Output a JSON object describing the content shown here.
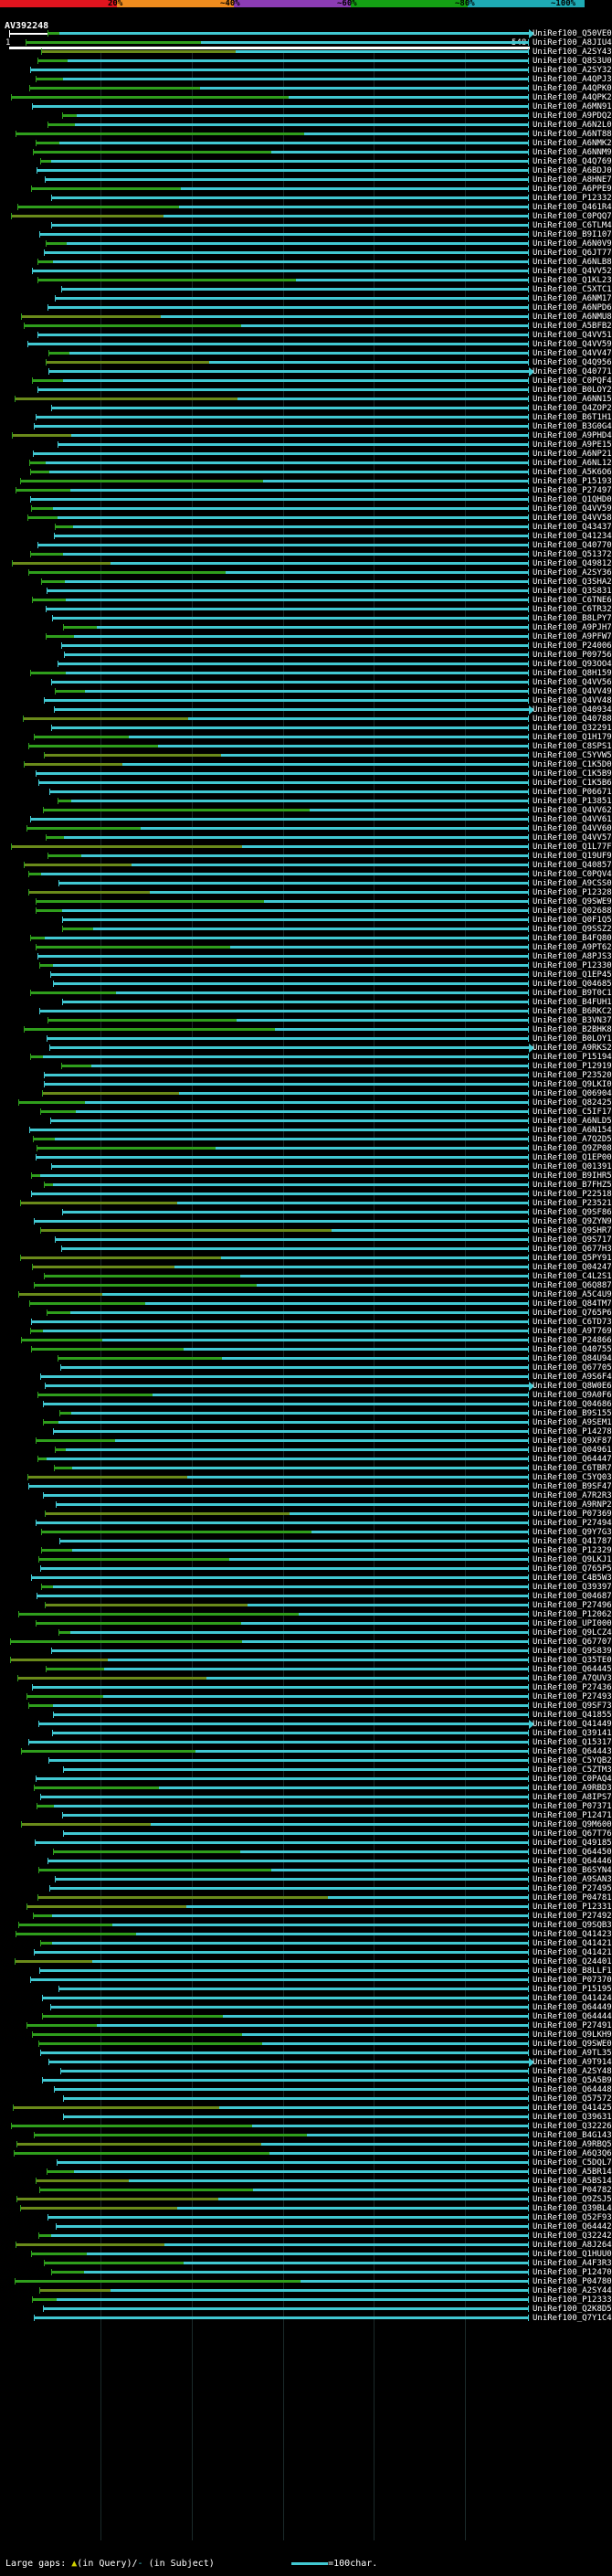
{
  "header": {
    "accession": "AV392248",
    "ruler_start": "1",
    "ruler_end": "548",
    "identity_scale": [
      "20%",
      "~40%",
      "~60%",
      "~80%",
      "~100%"
    ]
  },
  "colors": {
    "cyan": "#41c8d2",
    "green": "#2f9e1c",
    "olive": "#6a8a1a",
    "red": "#e1141e",
    "orange": "#f08c1e",
    "purple": "#8c3cb4",
    "bggreen": "#14a014",
    "teal": "#1eaab4"
  },
  "legend": {
    "text_left": "Large gaps: ",
    "query_marker": "▲",
    "text_mid": "(in Query)/",
    "subject_marker": "-",
    "text_right": " (in Subject)",
    "scale_label": "=100char."
  },
  "hits": [
    "UniRef100_Q50VE0",
    "UniRef100_A8JIU4",
    "UniRef100_A2SY43",
    "UniRef100_Q8S3U0",
    "UniRef100_A2SY32",
    "UniRef100_A4QPJ3",
    "UniRef100_A4QPK0",
    "UniRef100_A4QPK2",
    "UniRef100_A6MN91",
    "UniRef100_A9PDQ2",
    "UniRef100_A6N2L0",
    "UniRef100_A6NT88",
    "UniRef100_A6NMK2",
    "UniRef100_A6NNM9",
    "UniRef100_Q4Q769",
    "UniRef100_A6BDJ0",
    "UniRef100_A8HNE7",
    "UniRef100_A6PPE9",
    "UniRef100_P12332",
    "UniRef100_Q461R4",
    "UniRef100_C0PQQ7",
    "UniRef100_C6TLM4",
    "UniRef100_B9I107",
    "UniRef100_A6N0V9",
    "UniRef100_Q6JT77",
    "UniRef100_A6NLB8",
    "UniRef100_Q4VV52",
    "UniRef100_Q1KL23",
    "UniRef100_C5XTC1",
    "UniRef100_A6NM17",
    "UniRef100_A6NPD6",
    "UniRef100_A6NMU8",
    "UniRef100_A5BFB2",
    "UniRef100_Q4VV51",
    "UniRef100_Q4VV59",
    "UniRef100_Q4VV47",
    "UniRef100_Q4Q956",
    "UniRef100_Q40771",
    "UniRef100_C0PQF4",
    "UniRef100_B0LOY2",
    "UniRef100_A6NN15",
    "UniRef100_Q4ZOP2",
    "UniRef100_B6T1H1",
    "UniRef100_B3G0G4",
    "UniRef100_A9PHD4",
    "UniRef100_A9PE15",
    "UniRef100_A6NP21",
    "UniRef100_A6NL12",
    "UniRef100_A5K6O6",
    "UniRef100_P15193",
    "UniRef100_P27497",
    "UniRef100_Q1QHD0",
    "UniRef100_Q4VV59",
    "UniRef100_Q4VV58",
    "UniRef100_Q43437",
    "UniRef100_Q41234",
    "UniRef100_Q40770",
    "UniRef100_Q51372",
    "UniRef100_Q49812",
    "UniRef100_A2SY36",
    "UniRef100_Q3SHA2",
    "UniRef100_Q3S831",
    "UniRef100_C6TNE6",
    "UniRef100_C6TR32",
    "UniRef100_B8LPY7",
    "UniRef100_A9PJH7",
    "UniRef100_A9PFW7",
    "UniRef100_P24006",
    "UniRef100_P09756",
    "UniRef100_Q93OO4",
    "UniRef100_Q8H159",
    "UniRef100_Q4VV56",
    "UniRef100_Q4VV49",
    "UniRef100_Q4VV48",
    "UniRef100_Q40934",
    "UniRef100_Q40788",
    "UniRef100_Q32291",
    "UniRef100_Q1H179",
    "UniRef100_C8SPS1",
    "UniRef100_C5YVW5",
    "UniRef100_C1K5D0",
    "UniRef100_C1K5B9",
    "UniRef100_C1K5B6",
    "UniRef100_P06671",
    "UniRef100_P13851",
    "UniRef100_Q4VV62",
    "UniRef100_Q4VV61",
    "UniRef100_Q4VV60",
    "UniRef100_Q4VV57",
    "UniRef100_Q1L77F",
    "UniRef100_Q19UF9",
    "UniRef100_Q40857",
    "UniRef100_C0PQV4",
    "UniRef100_A9CSS0",
    "UniRef100_P12328",
    "UniRef100_Q9SWE9",
    "UniRef100_Q02688",
    "UniRef100_Q0F1Q5",
    "UniRef100_Q9SSZ2",
    "UniRef100_B4FQ80",
    "UniRef100_A9PT62",
    "UniRef100_A8PJS3",
    "UniRef100_P12330",
    "UniRef100_Q1EP45",
    "UniRef100_Q04685",
    "UniRef100_B9T0C1",
    "UniRef100_B4FUH1",
    "UniRef100_B6RKC2",
    "UniRef100_B3VN37",
    "UniRef100_B2BHK8",
    "UniRef100_B0LOY1",
    "UniRef100_A9RKS2",
    "UniRef100_P15194",
    "UniRef100_P12919",
    "UniRef100_P23520",
    "UniRef100_Q9LKI0",
    "UniRef100_Q06904",
    "UniRef100_Q82425",
    "UniRef100_C5IF17",
    "UniRef100_A6NLD5",
    "UniRef100_A6N154",
    "UniRef100_A7Q2D5",
    "UniRef100_Q9ZP08",
    "UniRef100_Q1EP00",
    "UniRef100_Q01391",
    "UniRef100_B9IHR5",
    "UniRef100_B7FHZ5",
    "UniRef100_P22518",
    "UniRef100_P23521",
    "UniRef100_Q9SF86",
    "UniRef100_Q9ZYN9",
    "UniRef100_Q9SHR7",
    "UniRef100_Q9S717",
    "UniRef100_Q677H3",
    "UniRef100_Q5PY91",
    "UniRef100_Q04247",
    "UniRef100_C4L2S1",
    "UniRef100_Q6Q887",
    "UniRef100_A5C4U9",
    "UniRef100_Q84TM7",
    "UniRef100_Q765P6",
    "UniRef100_C6TD73",
    "UniRef100_A9T769",
    "UniRef100_P24866",
    "UniRef100_Q40755",
    "UniRef100_Q84U94",
    "UniRef100_Q67705",
    "UniRef100_A9S6F4",
    "UniRef100_Q8W0E6",
    "UniRef100_Q9A0F6",
    "UniRef100_Q04686",
    "UniRef100_B9S155",
    "UniRef100_A9SEM1",
    "UniRef100_P14278",
    "UniRef100_Q9XF87",
    "UniRef100_Q04961",
    "UniRef100_Q64447",
    "UniRef100_C6TBR7",
    "UniRef100_C5YQ03",
    "UniRef100_B9SF47",
    "UniRef100_A7R2R3",
    "UniRef100_A9RNP2",
    "UniRef100_P07369",
    "UniRef100_P27494",
    "UniRef100_Q9Y7G3",
    "UniRef100_Q41787",
    "UniRef100_P12329",
    "UniRef100_Q9LKJ1",
    "UniRef100_Q765P5",
    "UniRef100_C4B5W3",
    "UniRef100_Q39397",
    "UniRef100_Q04687",
    "UniRef100_P27496",
    "UniRef100_P12062",
    "UniRef100_UPI000",
    "UniRef100_Q9LCZ4",
    "UniRef100_Q67707",
    "UniRef100_Q9S839",
    "UniRef100_Q35TE0",
    "UniRef100_Q64445",
    "UniRef100_A7QUV3",
    "UniRef100_P27436",
    "UniRef100_P27493",
    "UniRef100_Q9SF73",
    "UniRef100_Q41855",
    "UniRef100_Q41449",
    "UniRef100_Q39141",
    "UniRef100_Q15317",
    "UniRef100_Q64443",
    "UniRef100_C5YQB2",
    "UniRef100_C5ZTM3",
    "UniRef100_C0PAQ4",
    "UniRef100_A9RBD3",
    "UniRef100_A8IPS7",
    "UniRef100_P07371",
    "UniRef100_P12471",
    "UniRef100_Q9M600",
    "UniRef100_Q67T76",
    "UniRef100_Q49185",
    "UniRef100_Q64450",
    "UniRef100_Q64446",
    "UniRef100_B6SYN4",
    "UniRef100_A9SAN3",
    "UniRef100_P27495",
    "UniRef100_P04781",
    "UniRef100_P12331",
    "UniRef100_P27492",
    "UniRef100_Q9SQB3",
    "UniRef100_Q41423",
    "UniRef100_Q41421",
    "UniRef100_Q41421",
    "UniRef100_Q24401",
    "UniRef100_B8LLF1",
    "UniRef100_P07370",
    "UniRef100_P15195",
    "UniRef100_Q41424",
    "UniRef100_Q64449",
    "UniRef100_Q64444",
    "UniRef100_P27491",
    "UniRef100_Q9LKH9",
    "UniRef100_Q9SWE0",
    "UniRef100_A9TL35",
    "UniRef100_A9T914",
    "UniRef100_A2SY48",
    "UniRef100_Q5A5B9",
    "UniRef100_Q64448",
    "UniRef100_Q57572",
    "UniRef100_Q41425",
    "UniRef100_Q39631",
    "UniRef100_Q32226",
    "UniRef100_B4G143",
    "UniRef100_A9RBQ5",
    "UniRef100_A6Q3Q6",
    "UniRef100_C5DQL7",
    "UniRef100_A5BR14",
    "UniRef100_A5BS14",
    "UniRef100_P04782",
    "UniRef100_Q9ZSJ5",
    "UniRef100_Q39BL4",
    "UniRef100_Q52F93",
    "UniRef100_Q64442",
    "UniRef100_Q32242",
    "UniRef100_A8J264",
    "UniRef100_Q1HUU0",
    "UniRef100_A4F3R3",
    "UniRef100_P12470",
    "UniRef100_P04780",
    "UniRef100_A2SY44",
    "UniRef100_P12333",
    "UniRef100_Q2K8D5",
    "UniRef100_Q7Y1C4"
  ]
}
